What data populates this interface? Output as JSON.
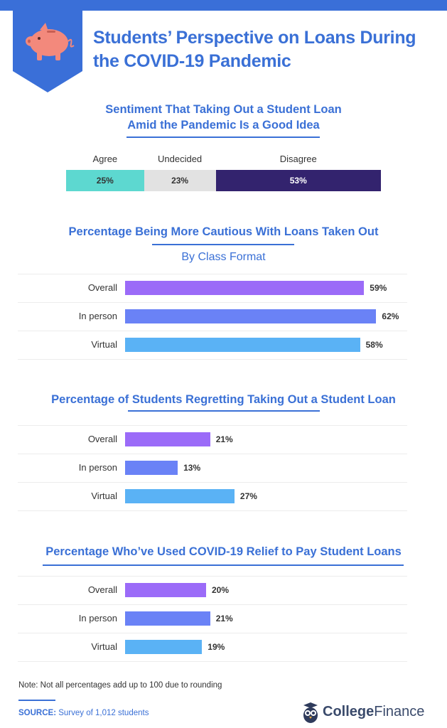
{
  "title": "Students’ Perspective on Loans During the COVID-19 Pandemic",
  "sentiment": {
    "title_line1": "Sentiment That Taking Out a Student Loan",
    "title_line2": "Amid the Pandemic Is a Good Idea",
    "segments": [
      {
        "label": "Agree",
        "value": 25,
        "text": "25%",
        "color": "#5dd8d0"
      },
      {
        "label": "Undecided",
        "value": 23,
        "text": "23%",
        "color": "#e2e2e2"
      },
      {
        "label": "Disagree",
        "value": 53,
        "text": "53%",
        "color": "#33236e"
      }
    ]
  },
  "chart_data": [
    {
      "type": "bar",
      "title": "Percentage Being More Cautious With Loans Taken Out",
      "subtitle": "By Class Format",
      "categories": [
        "Overall",
        "In person",
        "Virtual"
      ],
      "values": [
        59,
        62,
        58
      ],
      "value_labels": [
        "59%",
        "62%",
        "58%"
      ],
      "colors": [
        "#9b6bf8",
        "#6a82f6",
        "#5ab2f5"
      ]
    },
    {
      "type": "bar",
      "title": "Percentage of Students Regretting Taking Out a Student Loan",
      "categories": [
        "Overall",
        "In person",
        "Virtual"
      ],
      "values": [
        21,
        13,
        27
      ],
      "value_labels": [
        "21%",
        "13%",
        "27%"
      ],
      "colors": [
        "#9b6bf8",
        "#6a82f6",
        "#5ab2f5"
      ]
    },
    {
      "type": "bar",
      "title": "Percentage Who’ve Used COVID-19 Relief to Pay Student Loans",
      "categories": [
        "Overall",
        "In person",
        "Virtual"
      ],
      "values": [
        20,
        21,
        19
      ],
      "value_labels": [
        "20%",
        "21%",
        "19%"
      ],
      "colors": [
        "#9b6bf8",
        "#6a82f6",
        "#5ab2f5"
      ]
    }
  ],
  "note": "Note: Not all percentages add up to 100 due to rounding",
  "source_label": "SOURCE:",
  "source_text": "Survey of 1,012 students",
  "logo": {
    "part1": "College",
    "part2": "Finance",
    "icon": "owl-icon"
  },
  "header_icon": "piggy-bank-icon",
  "accent": "#3a70d6"
}
